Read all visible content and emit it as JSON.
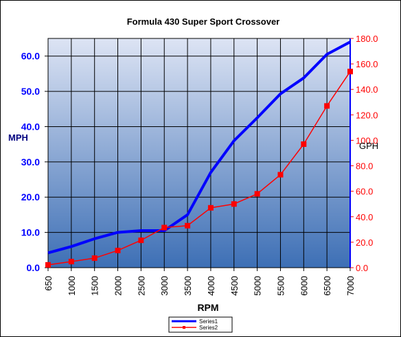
{
  "chart_data": {
    "type": "line",
    "title": "Formula 430  Super Sport Crossover",
    "xlabel": "RPM",
    "ylabel_left": "MPH",
    "ylabel_right": "GPH",
    "categories": [
      "650",
      "1000",
      "1500",
      "2000",
      "2500",
      "3000",
      "3500",
      "4000",
      "4500",
      "5000",
      "5500",
      "6000",
      "6500",
      "7000"
    ],
    "y_left_ticks": [
      "0.0",
      "10.0",
      "20.0",
      "30.0",
      "40.0",
      "50.0",
      "60.0"
    ],
    "y_right_ticks": [
      "0.0",
      "20.0",
      "40.0",
      "60.0",
      "80.0",
      "100.0",
      "120.0",
      "140.0",
      "160.0",
      "180.0"
    ],
    "ylim_left": [
      0,
      65
    ],
    "ylim_right": [
      0,
      180
    ],
    "grid": true,
    "legend_position": "bottom-center",
    "series": [
      {
        "name": "Series1",
        "axis": "left",
        "color": "#0000ff",
        "values": [
          4.2,
          6.0,
          8.2,
          10.0,
          10.5,
          10.5,
          15.0,
          27.0,
          36.0,
          42.5,
          49.3,
          53.8,
          60.5,
          64.0
        ]
      },
      {
        "name": "Series2",
        "axis": "right",
        "color": "#ff0000",
        "values": [
          2.2,
          4.8,
          7.5,
          13.5,
          21.5,
          31.5,
          33.0,
          47.0,
          50.0,
          58.0,
          73.0,
          97.0,
          127.0,
          154.0
        ]
      }
    ]
  },
  "colors": {
    "plot_top": "#dde4f4",
    "plot_bottom": "#3d6fb5",
    "left_axis_text": "#0000ff",
    "right_axis_text": "#ff0000"
  }
}
